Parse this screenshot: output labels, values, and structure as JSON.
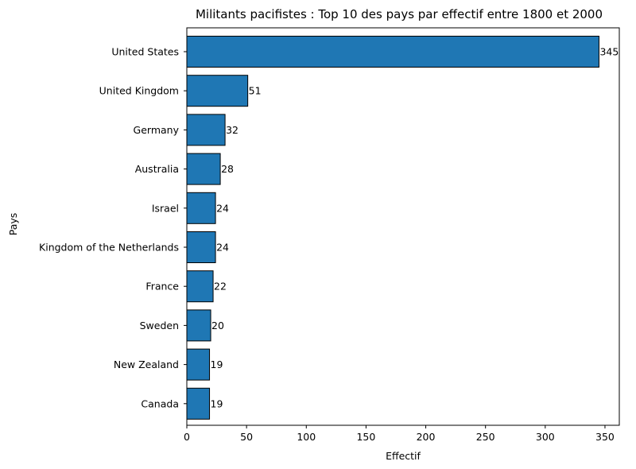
{
  "chart_data": {
    "type": "bar",
    "orientation": "horizontal",
    "title": "Militants pacifistes : Top 10 des pays par effectif entre 1800 et 2000",
    "xlabel": "Effectif",
    "ylabel": "Pays",
    "categories": [
      "United States",
      "United Kingdom",
      "Germany",
      "Australia",
      "Israel",
      "Kingdom of the Netherlands",
      "France",
      "Sweden",
      "New Zealand",
      "Canada"
    ],
    "values": [
      345,
      51,
      32,
      28,
      24,
      24,
      22,
      20,
      19,
      19
    ],
    "xlim": [
      0,
      362
    ],
    "xticks": [
      0,
      50,
      100,
      150,
      200,
      250,
      300,
      350
    ],
    "grid": false,
    "bar_color": "#1f77b4",
    "edge_color": "#000000"
  }
}
